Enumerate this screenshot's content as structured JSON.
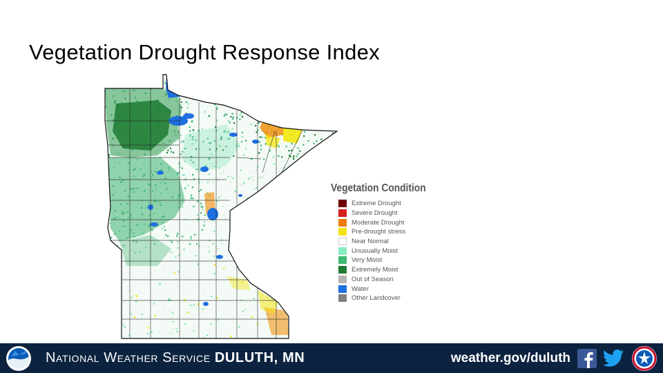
{
  "slide": {
    "title": "Vegetation Drought Response Index"
  },
  "map": {
    "region": "Minnesota",
    "colors": {
      "extremely_moist": "#1f7a34",
      "very_moist": "#3cb371",
      "unusually_moist": "#7fe0b4",
      "water": "#1e6fe0",
      "pre_drought": "#f2e600",
      "moderate": "#f08a00",
      "severe": "#d42020",
      "border": "#222222"
    }
  },
  "legend": {
    "title": "Vegetation Condition",
    "items": [
      {
        "label": "Extreme Drought",
        "color": "#6b0000"
      },
      {
        "label": "Severe Drought",
        "color": "#d42020"
      },
      {
        "label": "Moderate Drought",
        "color": "#ed7d0e"
      },
      {
        "label": "Pre-drought stress",
        "color": "#f5e31a"
      },
      {
        "label": "Near Normal",
        "color": "#ffffff"
      },
      {
        "label": "Unusually Moist",
        "color": "#88ecc0"
      },
      {
        "label": "Very Moist",
        "color": "#3fb874"
      },
      {
        "label": "Extremely Moist",
        "color": "#1f7a34"
      },
      {
        "label": "Out of Season",
        "color": "#b5b5b5"
      },
      {
        "label": "Water",
        "color": "#1e6fe0"
      },
      {
        "label": "Other Landcover",
        "color": "#808080"
      }
    ]
  },
  "footer": {
    "org_prefix": "National Weather Service",
    "office": "Duluth, MN",
    "url": "weather.gov/duluth",
    "bg_color": "#0c2340"
  },
  "icons": {
    "left_logo": "noaa-logo",
    "facebook": "facebook-icon",
    "twitter": "twitter-icon",
    "right_logo": "nws-logo"
  }
}
